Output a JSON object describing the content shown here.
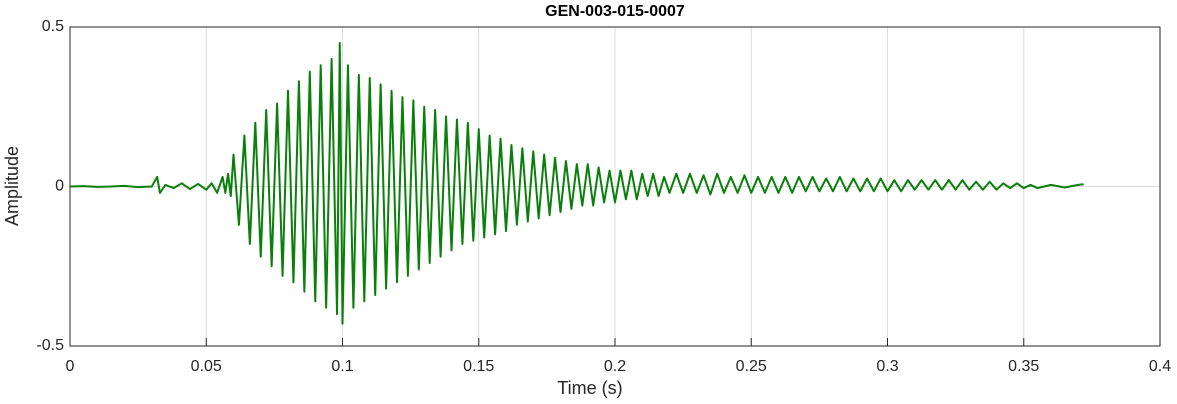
{
  "chart_data": {
    "type": "line",
    "title": "GEN-003-015-0007",
    "x_label": "Time (s)",
    "y_label": "Amplitude",
    "xlim": [
      0,
      0.4
    ],
    "xticks": [
      0,
      0.05,
      0.1,
      0.15,
      0.2,
      0.25,
      0.3,
      0.35,
      0.4
    ],
    "ylim": [
      -0.5,
      0.5
    ],
    "yticks": [
      -0.5,
      0,
      0.5
    ],
    "grid": true,
    "series": [
      {
        "color": "#0b7f0b",
        "x": [
          0,
          0.005,
          0.01,
          0.015,
          0.02,
          0.025,
          0.03,
          0.032,
          0.033,
          0.035,
          0.038,
          0.041,
          0.044,
          0.047,
          0.05,
          0.052,
          0.054,
          0.056,
          0.057,
          0.058,
          0.059,
          0.06,
          0.062,
          0.064,
          0.066,
          0.068,
          0.07,
          0.072,
          0.074,
          0.076,
          0.078,
          0.08,
          0.082,
          0.084,
          0.086,
          0.088,
          0.09,
          0.092,
          0.094,
          0.096,
          0.098,
          0.099,
          0.1,
          0.102,
          0.104,
          0.106,
          0.108,
          0.11,
          0.112,
          0.114,
          0.116,
          0.118,
          0.12,
          0.122,
          0.124,
          0.126,
          0.128,
          0.13,
          0.132,
          0.134,
          0.136,
          0.138,
          0.14,
          0.142,
          0.144,
          0.146,
          0.148,
          0.15,
          0.152,
          0.154,
          0.156,
          0.158,
          0.16,
          0.162,
          0.164,
          0.166,
          0.168,
          0.17,
          0.172,
          0.174,
          0.176,
          0.178,
          0.18,
          0.182,
          0.184,
          0.186,
          0.188,
          0.19,
          0.192,
          0.194,
          0.196,
          0.198,
          0.2,
          0.202,
          0.204,
          0.206,
          0.208,
          0.21,
          0.212,
          0.214,
          0.216,
          0.218,
          0.22,
          0.2225,
          0.225,
          0.2275,
          0.23,
          0.2325,
          0.235,
          0.2375,
          0.24,
          0.2425,
          0.245,
          0.2475,
          0.25,
          0.2525,
          0.255,
          0.2575,
          0.26,
          0.2625,
          0.265,
          0.2675,
          0.27,
          0.2725,
          0.275,
          0.2775,
          0.28,
          0.2825,
          0.285,
          0.2875,
          0.29,
          0.2925,
          0.295,
          0.2975,
          0.3,
          0.3025,
          0.305,
          0.3075,
          0.31,
          0.3125,
          0.315,
          0.3175,
          0.32,
          0.3225,
          0.325,
          0.3275,
          0.33,
          0.3325,
          0.335,
          0.3375,
          0.34,
          0.3425,
          0.345,
          0.3475,
          0.35,
          0.3525,
          0.355,
          0.36,
          0.365,
          0.37,
          0.372
        ],
        "values": [
          0,
          0.001,
          -0.001,
          0,
          0.002,
          -0.002,
          0,
          0.03,
          -0.02,
          0.005,
          -0.005,
          0.01,
          -0.008,
          0.008,
          -0.01,
          0.01,
          -0.02,
          0.03,
          -0.02,
          0.04,
          -0.03,
          0.1,
          -0.12,
          0.16,
          -0.18,
          0.2,
          -0.22,
          0.24,
          -0.25,
          0.26,
          -0.28,
          0.3,
          -0.3,
          0.33,
          -0.33,
          0.36,
          -0.36,
          0.38,
          -0.38,
          0.4,
          -0.4,
          0.45,
          -0.43,
          0.38,
          -0.38,
          0.35,
          -0.36,
          0.34,
          -0.34,
          0.32,
          -0.32,
          0.3,
          -0.3,
          0.28,
          -0.28,
          0.27,
          -0.26,
          0.25,
          -0.24,
          0.24,
          -0.22,
          0.22,
          -0.2,
          0.21,
          -0.18,
          0.2,
          -0.17,
          0.18,
          -0.16,
          0.16,
          -0.15,
          0.15,
          -0.14,
          0.13,
          -0.12,
          0.12,
          -0.11,
          0.11,
          -0.1,
          0.1,
          -0.09,
          0.09,
          -0.08,
          0.08,
          -0.07,
          0.07,
          -0.06,
          0.07,
          -0.06,
          0.06,
          -0.05,
          0.05,
          -0.05,
          0.05,
          -0.04,
          0.05,
          -0.04,
          0.04,
          -0.03,
          0.04,
          -0.03,
          0.03,
          -0.02,
          0.04,
          -0.02,
          0.04,
          -0.02,
          0.035,
          -0.025,
          0.04,
          -0.02,
          0.03,
          -0.02,
          0.035,
          -0.02,
          0.03,
          -0.02,
          0.03,
          -0.02,
          0.03,
          -0.02,
          0.03,
          -0.015,
          0.03,
          -0.015,
          0.025,
          -0.015,
          0.03,
          -0.015,
          0.025,
          -0.015,
          0.025,
          -0.015,
          0.025,
          -0.015,
          0.02,
          -0.015,
          0.02,
          -0.01,
          0.02,
          -0.01,
          0.02,
          -0.01,
          0.02,
          -0.01,
          0.02,
          -0.01,
          0.015,
          -0.01,
          0.015,
          -0.01,
          0.01,
          -0.005,
          0.01,
          -0.005,
          0.005,
          -0.005,
          0.005,
          -0.003,
          0.005,
          0.007
        ]
      }
    ]
  }
}
